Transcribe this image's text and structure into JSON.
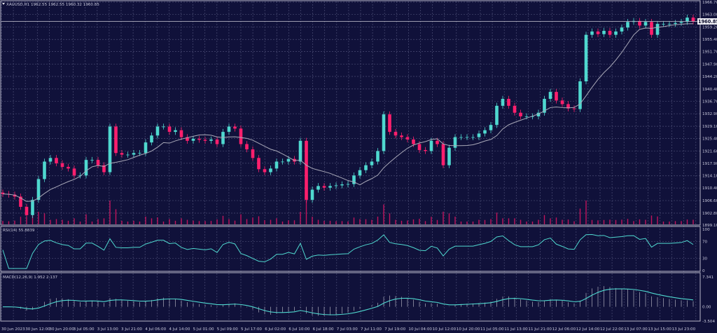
{
  "header": {
    "symbol_line": "XAUUSD,H1  1962.55  1962.55  1960.32  1960.85",
    "current_price_label": "1960.85"
  },
  "colors": {
    "background": "#10113a",
    "bull": "#4fd8cf",
    "bear": "#ff1f6d",
    "ma_line": "#a9a9b8",
    "indicator_line": "#4fd8cf",
    "volume": "#c0145c"
  },
  "chart_data": [
    {
      "type": "candlestick",
      "title": "XAUUSD,H1",
      "price_ticks": [
        "1966.70",
        "1963.00",
        "1959.20",
        "1955.40",
        "1951.70",
        "1947.90",
        "1944.20",
        "1940.40",
        "1936.70",
        "1932.90",
        "1929.10",
        "1925.40",
        "1921.60",
        "1917.90",
        "1914.10",
        "1910.40",
        "1906.60",
        "1902.80",
        "1899.10"
      ],
      "ylim": [
        1899.1,
        1966.7
      ],
      "time_ticks": [
        "30 Jun 2023",
        "30 Jun 12:00",
        "30 Jun 20:00",
        "3 Jul 05:00",
        "3 Jul 13:00",
        "3 Jul 21:00",
        "4 Jul 06:00",
        "4 Jul 14:00",
        "5 Jul 01:00",
        "5 Jul 09:00",
        "5 Jul 17:00",
        "6 Jul 02:00",
        "6 Jul 10:00",
        "6 Jul 18:00",
        "7 Jul 03:00",
        "7 Jul 11:00",
        "7 Jul 19:00",
        "10 Jul 04:00",
        "10 Jul 12:00",
        "10 Jul 20:00",
        "11 Jul 05:00",
        "11 Jul 13:00",
        "11 Jul 21:00",
        "12 Jul 06:00",
        "12 Jul 14:00",
        "12 Jul 22:00",
        "13 Jul 07:00",
        "13 Jul 15:00",
        "13 Jul 23:00"
      ],
      "closes": [
        1908.6,
        1908.4,
        1907.8,
        1904.7,
        1902.2,
        1906.8,
        1913.1,
        1918.4,
        1919.5,
        1917.9,
        1916.8,
        1916.3,
        1914.2,
        1914.2,
        1918.9,
        1918.9,
        1917.3,
        1915.2,
        1929.0,
        1921.0,
        1920.5,
        1920.5,
        1921.0,
        1921.0,
        1924.2,
        1926.3,
        1929.0,
        1929.0,
        1927.4,
        1927.9,
        1925.8,
        1924.7,
        1925.3,
        1925.0,
        1924.7,
        1925.1,
        1923.7,
        1927.4,
        1929.0,
        1928.4,
        1923.7,
        1922.1,
        1919.5,
        1916.1,
        1915.2,
        1916.3,
        1918.4,
        1918.4,
        1919.2,
        1918.4,
        1924.7,
        1906.8,
        1909.9,
        1911.0,
        1910.5,
        1911.0,
        1911.2,
        1911.5,
        1911.6,
        1914.2,
        1915.8,
        1917.3,
        1918.4,
        1921.6,
        1932.7,
        1927.4,
        1926.3,
        1925.8,
        1925.1,
        1923.7,
        1921.9,
        1921.6,
        1924.7,
        1923.7,
        1917.3,
        1922.6,
        1925.8,
        1925.8,
        1925.8,
        1925.8,
        1926.9,
        1927.9,
        1929.5,
        1935.3,
        1937.4,
        1935.3,
        1933.2,
        1932.1,
        1932.1,
        1932.1,
        1933.2,
        1937.4,
        1939.5,
        1936.9,
        1935.8,
        1934.5,
        1934.3,
        1942.7,
        1956.8,
        1957.8,
        1957.0,
        1958.0,
        1956.8,
        1957.8,
        1959.0,
        1960.7,
        1961.0,
        1959.6,
        1960.7,
        1956.8,
        1960.1,
        1960.1,
        1960.1,
        1960.4,
        1960.7,
        1962.0,
        1960.85
      ],
      "current_price": 1960.85,
      "overlay": "moving average",
      "grid": true
    },
    {
      "type": "line",
      "title": "RSI(14) 55.8839",
      "ticks": [
        "100",
        "70",
        "30",
        "0"
      ],
      "ylim": [
        0,
        100
      ],
      "levels": [
        70,
        30
      ]
    },
    {
      "type": "bar+line",
      "title": "MACD(12,26,9) 1.952 2.137",
      "ticks": [
        "7.341",
        "0.00",
        "-3.504"
      ],
      "ylim": [
        -3.504,
        7.341
      ]
    }
  ]
}
